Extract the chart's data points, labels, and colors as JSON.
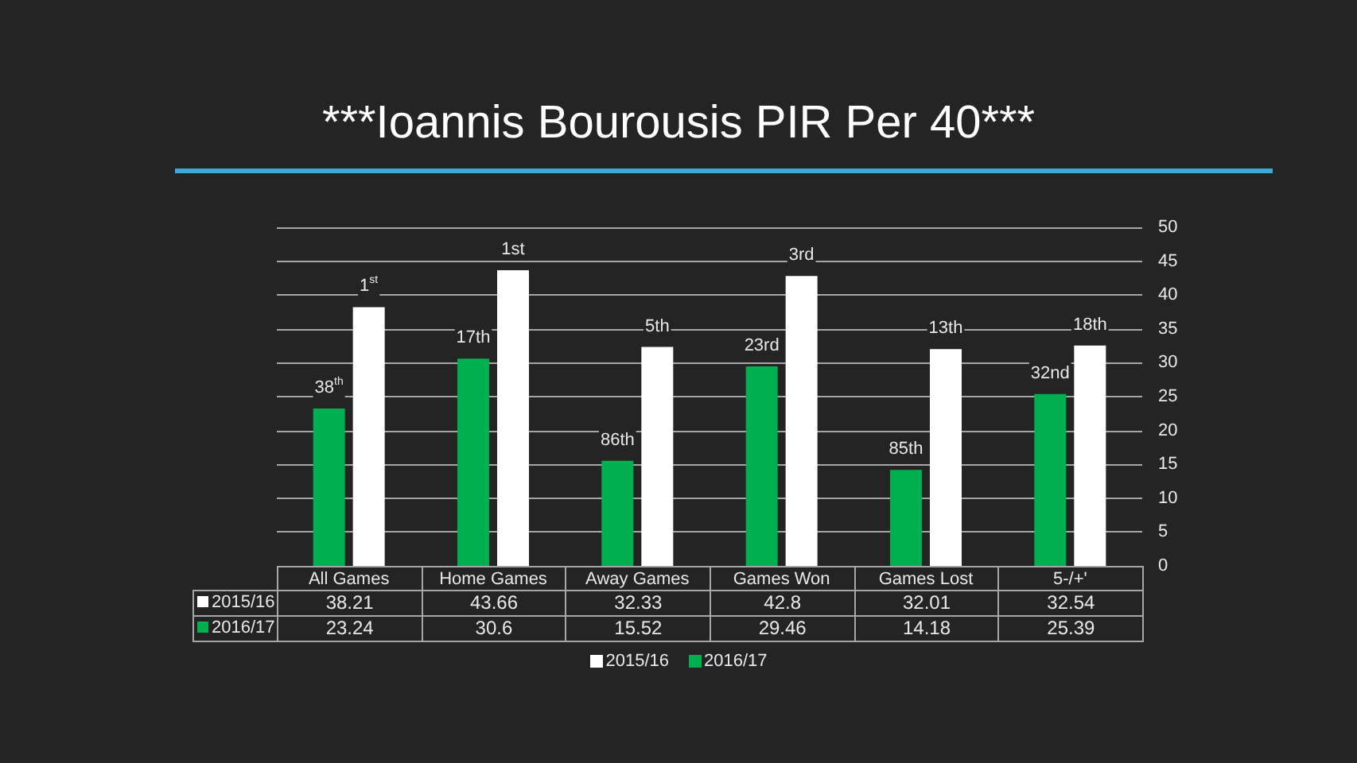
{
  "chart_data": {
    "type": "bar",
    "title": "***Ioannis Bourousis PIR Per 40***",
    "categories": [
      "All Games",
      "Home Games",
      "Away Games",
      "Games Won",
      "Games Lost",
      "5-/+'"
    ],
    "series": [
      {
        "name": "2015/16",
        "color": "#ffffff",
        "values": [
          38.21,
          43.66,
          32.33,
          42.8,
          32.01,
          32.54
        ]
      },
      {
        "name": "2016/17",
        "color": "#00b050",
        "values": [
          23.24,
          30.6,
          15.52,
          29.46,
          14.18,
          25.39
        ]
      }
    ],
    "ylim": [
      0,
      50
    ],
    "yticks": [
      0,
      5,
      10,
      15,
      20,
      25,
      30,
      35,
      40,
      45,
      50
    ],
    "grid": "y",
    "legend": "bottom",
    "data_labels": true,
    "annotations": [
      {
        "text": "38$^{th}$",
        "x": "All Games",
        "y": 23.24
      },
      {
        "text": "1$^{st}$",
        "x": "All Games",
        "y": 38.21
      },
      {
        "text": "17th",
        "x": "Home Games",
        "y": 30.6
      },
      {
        "text": "1st",
        "x": "Home Games",
        "y": 43.66
      },
      {
        "text": "86th",
        "x": "Away Games",
        "y": 15.52
      },
      {
        "text": "5th",
        "x": "Away Games",
        "y": 32.33
      },
      {
        "text": "23rd",
        "x": "Games Won",
        "y": 29.46
      },
      {
        "text": "3rd",
        "x": "Games Won",
        "y": 42.8
      },
      {
        "text": "85th",
        "x": "Games Lost",
        "y": 14.18
      },
      {
        "text": "13th",
        "x": "Games Lost",
        "y": 32.01
      },
      {
        "text": "32nd",
        "x": "5-/+'",
        "y": 25.39
      },
      {
        "text": "18th",
        "x": "5-/+'",
        "y": 32.54
      }
    ]
  }
}
